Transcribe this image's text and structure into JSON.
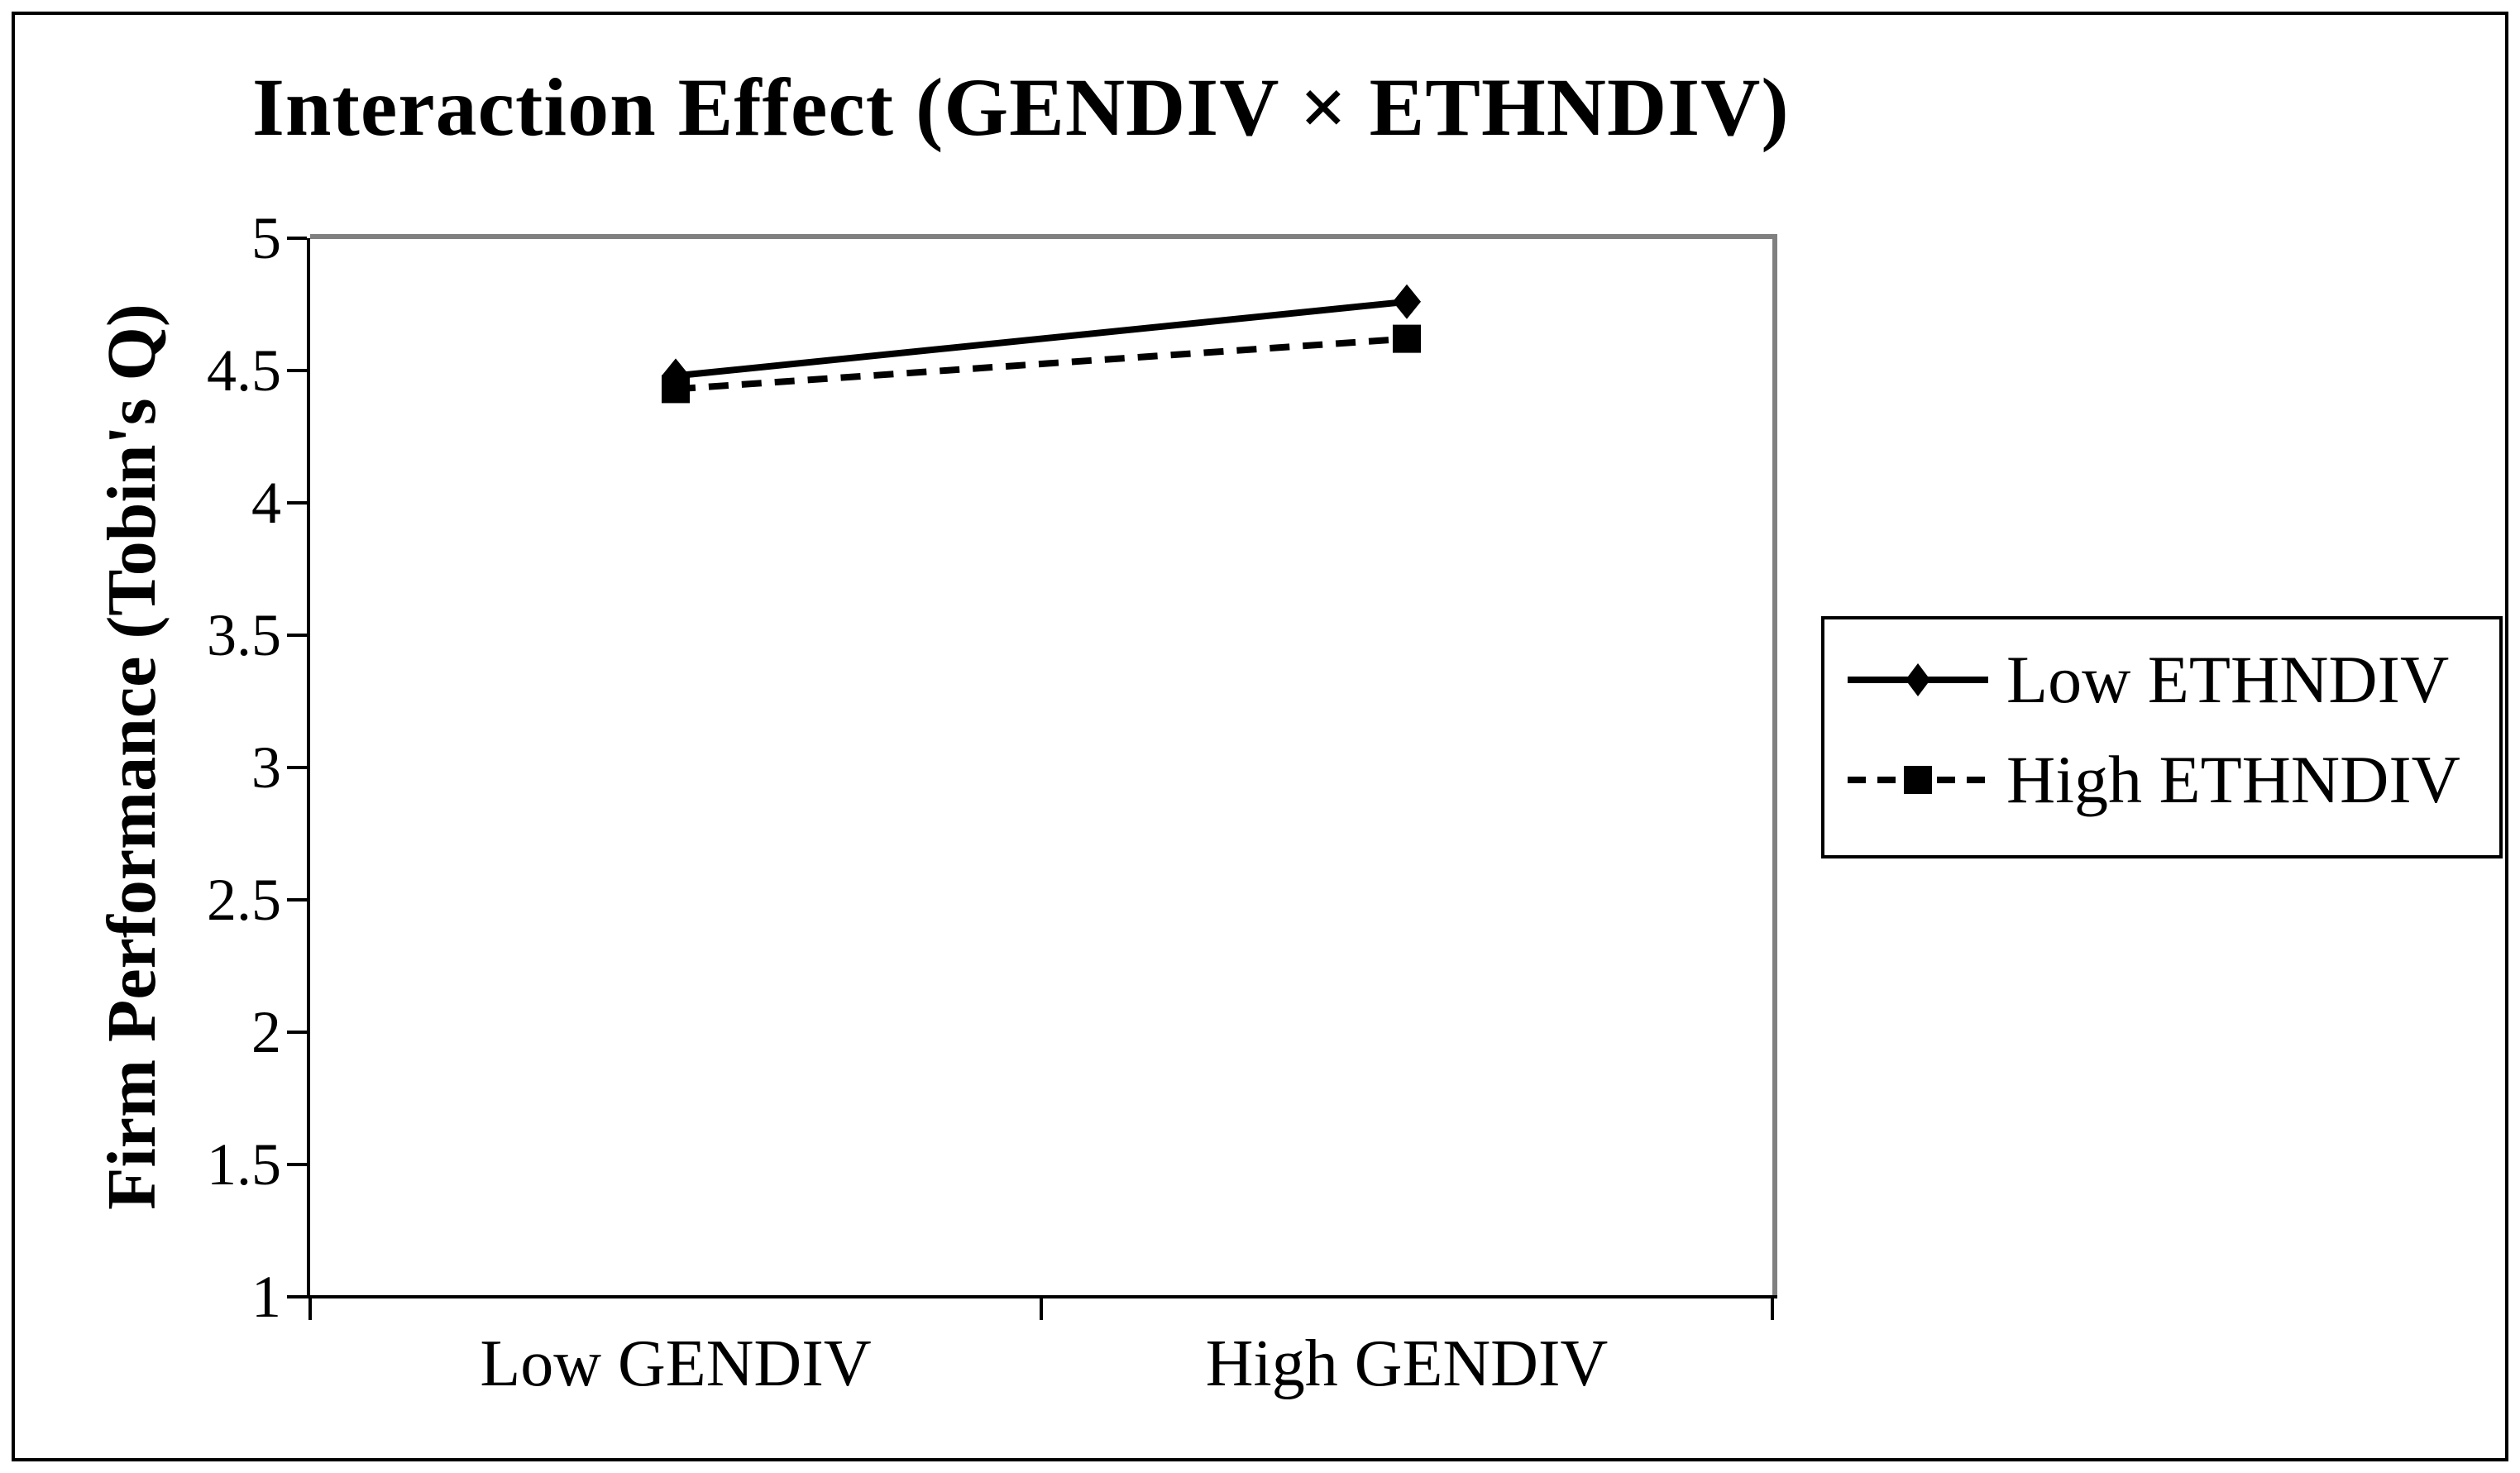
{
  "figure": {
    "background": "#ffffff",
    "border_color": "#000000",
    "plot_frame_color": "#808080",
    "axis_color": "#000000",
    "text_color": "#000000"
  },
  "chart_data": {
    "type": "line",
    "title": "Interaction Effect  (GENDIV × ETHNDIV)",
    "categories": [
      "Low GENDIV",
      "High GENDIV"
    ],
    "series": [
      {
        "name": "Low ETHNDIV",
        "values": [
          4.48,
          4.76
        ],
        "line_style": "solid",
        "marker": "diamond",
        "color": "#000000"
      },
      {
        "name": "High ETHNDIV",
        "values": [
          4.43,
          4.62
        ],
        "line_style": "dashed",
        "marker": "square",
        "color": "#000000"
      }
    ],
    "xlabel": "",
    "ylabel": "Firm Performance (Tobin's Q)",
    "ylim": [
      1,
      5
    ],
    "yticks": [
      5,
      4.5,
      4,
      3.5,
      3,
      2.5,
      2,
      1.5,
      1
    ],
    "grid": false,
    "legend_position": "right"
  }
}
